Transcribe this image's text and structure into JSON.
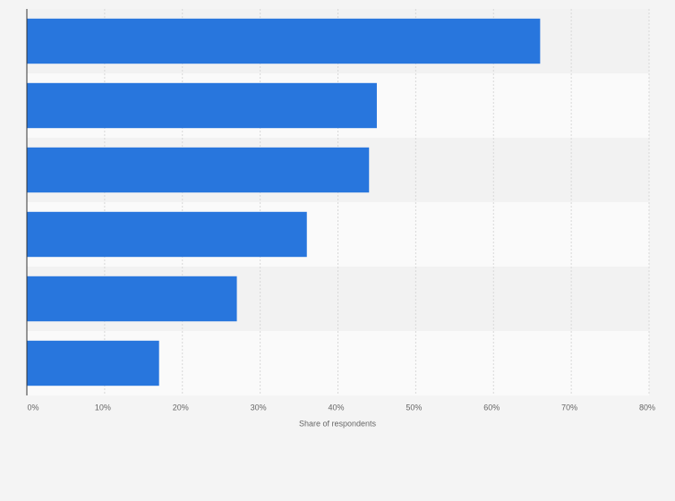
{
  "chart_data": {
    "type": "barh",
    "xlabel": "Share of respondents",
    "categories": [
      null,
      null,
      null,
      null,
      null,
      null
    ],
    "values": [
      66,
      45,
      44,
      36,
      27,
      17
    ],
    "color": "#2876dd",
    "xlim": [
      0,
      80
    ],
    "xticks": [
      {
        "value": 0,
        "label": "0%"
      },
      {
        "value": 10,
        "label": "10%"
      },
      {
        "value": 20,
        "label": "20%"
      },
      {
        "value": 30,
        "label": "30%"
      },
      {
        "value": 40,
        "label": "40%"
      },
      {
        "value": 50,
        "label": "50%"
      },
      {
        "value": 60,
        "label": "60%"
      },
      {
        "value": 70,
        "label": "70%"
      },
      {
        "value": 80,
        "label": "80%"
      }
    ],
    "grid": true
  }
}
